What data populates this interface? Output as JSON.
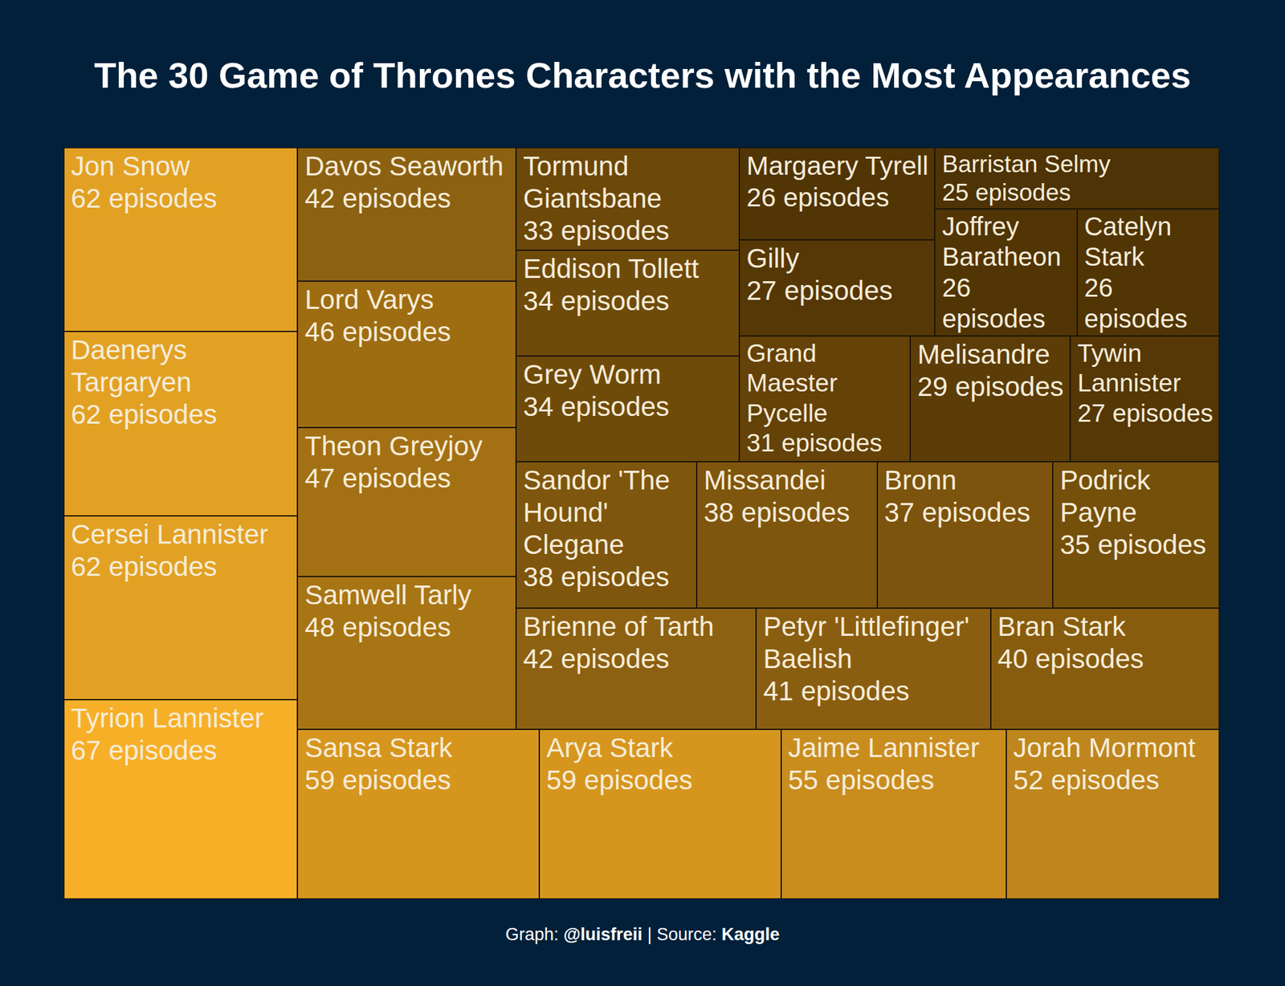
{
  "chart_data": {
    "type": "treemap",
    "title": "The 30 Game of Thrones Characters with the Most Appearances",
    "categories": [
      "Jon Snow",
      "Daenerys Targaryen",
      "Cersei Lannister",
      "Tyrion Lannister",
      "Davos Seaworth",
      "Lord Varys",
      "Theon Greyjoy",
      "Samwell Tarly",
      "Sansa Stark",
      "Arya Stark",
      "Jaime Lannister",
      "Jorah Mormont",
      "Tormund Giantsbane",
      "Eddison Tollett",
      "Grey Worm",
      "Sandor 'The Hound' Clegane",
      "Missandei",
      "Bronn",
      "Podrick Payne",
      "Brienne of Tarth",
      "Petyr 'Littlefinger' Baelish",
      "Bran Stark",
      "Margaery Tyrell",
      "Gilly",
      "Barristan Selmy",
      "Joffrey Baratheon",
      "Catelyn Stark",
      "Grand Maester Pycelle",
      "Melisandre",
      "Tywin Lannister"
    ],
    "values": [
      62,
      62,
      62,
      67,
      42,
      46,
      47,
      48,
      59,
      59,
      55,
      52,
      33,
      34,
      34,
      38,
      38,
      37,
      35,
      42,
      41,
      40,
      26,
      27,
      25,
      26,
      26,
      31,
      29,
      27
    ],
    "value_labels": [
      "62 episodes",
      "62 episodes",
      "62 episodes",
      "67 episodes",
      "42 episodes",
      "46 episodes",
      "47 episodes",
      "48 episodes",
      "59 episodes",
      "59 episodes",
      "55 episodes",
      "52 episodes",
      "33 episodes",
      "34 episodes",
      "34 episodes",
      "38 episodes",
      "38 episodes",
      "37 episodes",
      "35 episodes",
      "42 episodes",
      "41 episodes",
      "40 episodes",
      "26 episodes",
      "27 episodes",
      "25 episodes",
      "26 episodes",
      "26 episodes",
      "31 episodes",
      "29 episodes",
      "27 episodes"
    ],
    "colors": [
      "#e2a123",
      "#e2a123",
      "#e2a123",
      "#f7af27",
      "#8c6111",
      "#9e6d12",
      "#a37114",
      "#a87514",
      "#d6961e",
      "#d6961e",
      "#c98d1e",
      "#be861c",
      "#6c4809",
      "#6f4b0a",
      "#6f4b0a",
      "#7f560d",
      "#7f560d",
      "#7c540d",
      "#75500b",
      "#8c6111",
      "#8a5e10",
      "#875c0f",
      "#513505",
      "#553806",
      "#4d3305",
      "#513505",
      "#513505",
      "#644208",
      "#5c3d07",
      "#553806"
    ],
    "data_labels": true,
    "credit": {
      "graph_label": "Graph:",
      "graph_by": "@luisfreii",
      "separator": "|",
      "source_label": "Source:",
      "source": "Kaggle"
    }
  }
}
